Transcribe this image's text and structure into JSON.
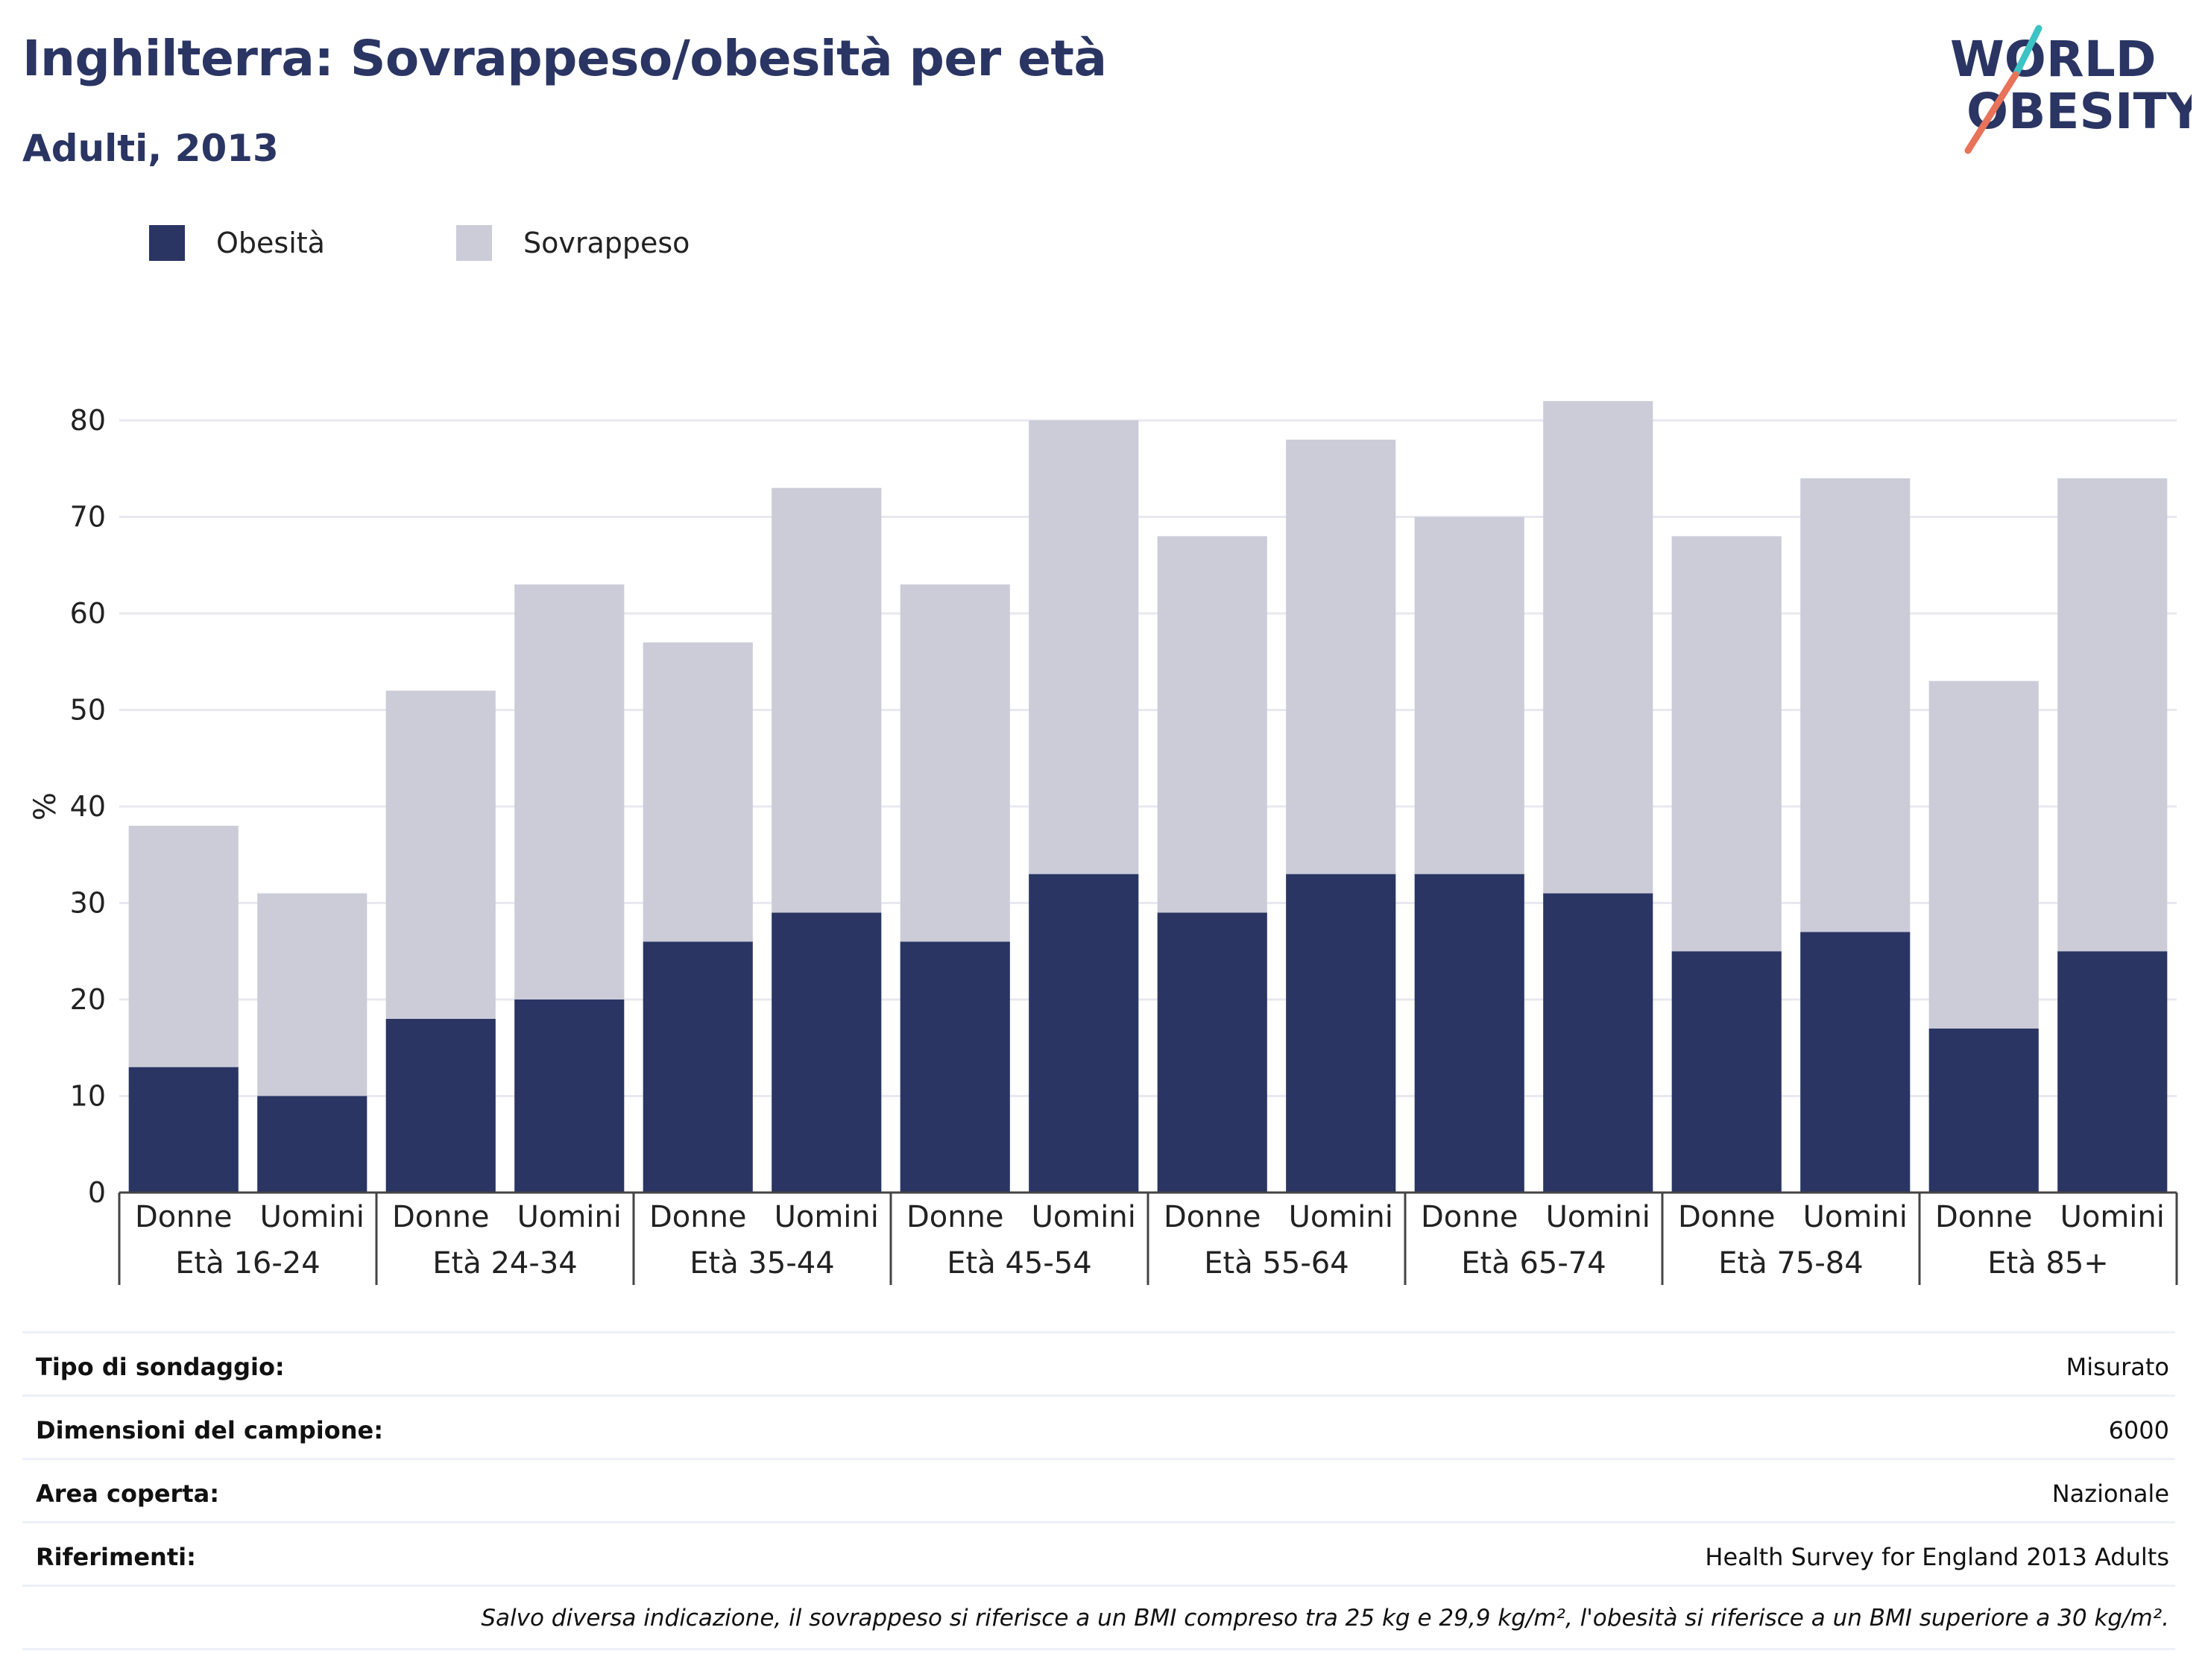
{
  "header": {
    "title": "Inghilterra: Sovrappeso/obesità per età",
    "subtitle": "Adulti, 2013"
  },
  "logo": {
    "line1": "WORLD",
    "line2": "OBESITY",
    "colors": {
      "text": "#2a3563",
      "slash_teal": "#3cc3c4",
      "slash_coral": "#e8735a"
    }
  },
  "legend": {
    "items": [
      {
        "label": "Obesità",
        "color": "#2a3563"
      },
      {
        "label": "Sovrappeso",
        "color": "#cbccd8"
      }
    ]
  },
  "chart_data": {
    "type": "bar",
    "stacked": true,
    "ylabel": "%",
    "xlabel": "",
    "ylim": [
      0,
      85
    ],
    "yticks": [
      0,
      10,
      20,
      30,
      40,
      50,
      60,
      70,
      80
    ],
    "grid": true,
    "legend_position": "top-left",
    "groups": [
      "Età 16-24",
      "Età 24-34",
      "Età 35-44",
      "Età 45-54",
      "Età 55-64",
      "Età 65-74",
      "Età 75-84",
      "Età 85+"
    ],
    "categories": [
      "Donne",
      "Uomini",
      "Donne",
      "Uomini",
      "Donne",
      "Uomini",
      "Donne",
      "Uomini",
      "Donne",
      "Uomini",
      "Donne",
      "Uomini",
      "Donne",
      "Uomini",
      "Donne",
      "Uomini"
    ],
    "series": [
      {
        "name": "Obesità",
        "color": "#2a3563",
        "values": [
          13,
          10,
          18,
          20,
          26,
          29,
          26,
          33,
          29,
          33,
          33,
          31,
          25,
          27,
          17,
          25
        ]
      },
      {
        "name": "Sovrappeso",
        "color": "#cbccd8",
        "values": [
          25,
          21,
          34,
          43,
          31,
          44,
          37,
          47,
          39,
          45,
          37,
          51,
          43,
          47,
          36,
          49
        ]
      }
    ]
  },
  "info": {
    "rows": [
      {
        "label": "Tipo di sondaggio:",
        "value": "Misurato"
      },
      {
        "label": "Dimensioni del campione:",
        "value": "6000"
      },
      {
        "label": "Area coperta:",
        "value": "Nazionale"
      },
      {
        "label": "Riferimenti:",
        "value": "Health Survey for England 2013 Adults"
      }
    ],
    "note": "Salvo diversa indicazione, il sovrappeso si riferisce a un BMI compreso tra 25 kg e 29,9 kg/m², l'obesità si riferisce a un BMI superiore a 30 kg/m²."
  }
}
